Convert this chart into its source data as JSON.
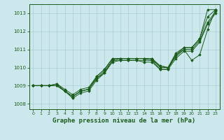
{
  "background_color": "#cde8ec",
  "grid_color": "#aacdd4",
  "line_color": "#1a5c1a",
  "title": "Graphe pression niveau de la mer (hPa)",
  "title_fontsize": 6.5,
  "xlim": [
    -0.5,
    23.5
  ],
  "ylim": [
    1007.7,
    1013.5
  ],
  "yticks": [
    1008,
    1009,
    1010,
    1011,
    1012,
    1013
  ],
  "xticks": [
    0,
    1,
    2,
    3,
    4,
    5,
    6,
    7,
    8,
    9,
    10,
    11,
    12,
    13,
    14,
    15,
    16,
    17,
    18,
    19,
    20,
    21,
    22,
    23
  ],
  "series": [
    {
      "x": [
        0,
        1,
        2,
        3,
        4,
        5,
        6,
        7,
        8,
        9,
        10,
        11,
        12,
        13,
        14,
        15,
        16,
        17,
        18,
        19,
        20,
        21,
        22,
        23
      ],
      "y": [
        1009.0,
        1009.0,
        1009.0,
        1009.1,
        1008.7,
        1008.4,
        1008.7,
        1008.8,
        1009.4,
        1009.8,
        1010.4,
        1010.5,
        1010.5,
        1010.5,
        1010.5,
        1010.4,
        1010.1,
        1010.0,
        1010.6,
        1011.0,
        1011.0,
        1011.5,
        1012.5,
        1013.1
      ]
    },
    {
      "x": [
        0,
        1,
        2,
        3,
        4,
        5,
        6,
        7,
        8,
        9,
        10,
        11,
        12,
        13,
        14,
        15,
        16,
        17,
        18,
        19,
        20,
        21,
        22,
        23
      ],
      "y": [
        1009.0,
        1009.0,
        1009.0,
        1009.0,
        1008.7,
        1008.4,
        1008.7,
        1008.8,
        1009.5,
        1009.9,
        1010.5,
        1010.5,
        1010.5,
        1010.5,
        1010.5,
        1010.5,
        1010.0,
        1010.0,
        1010.7,
        1011.1,
        1011.1,
        1011.6,
        1013.2,
        1013.2
      ]
    },
    {
      "x": [
        0,
        1,
        2,
        3,
        4,
        5,
        6,
        7,
        8,
        9,
        10,
        11,
        12,
        13,
        14,
        15,
        16,
        17,
        18,
        19,
        20,
        21,
        22,
        23
      ],
      "y": [
        1009.0,
        1009.0,
        1009.0,
        1009.0,
        1008.7,
        1008.3,
        1008.6,
        1008.7,
        1009.3,
        1009.7,
        1010.3,
        1010.4,
        1010.4,
        1010.4,
        1010.3,
        1010.3,
        1009.9,
        1009.9,
        1010.5,
        1010.9,
        1010.9,
        1011.4,
        1012.4,
        1013.0
      ]
    },
    {
      "x": [
        0,
        1,
        2,
        3,
        4,
        5,
        6,
        7,
        8,
        9,
        10,
        11,
        12,
        13,
        14,
        15,
        16,
        17,
        18,
        19,
        20,
        21,
        22,
        23
      ],
      "y": [
        1009.0,
        1009.0,
        1009.0,
        1009.0,
        1008.7,
        1008.4,
        1008.7,
        1008.8,
        1009.4,
        1009.7,
        1010.4,
        1010.4,
        1010.4,
        1010.4,
        1010.4,
        1010.4,
        1009.9,
        1009.9,
        1010.7,
        1011.0,
        1010.4,
        1010.7,
        1012.1,
        1013.2
      ]
    },
    {
      "x": [
        0,
        1,
        2,
        3,
        4,
        5,
        6,
        7,
        8,
        9,
        10,
        11,
        12,
        13,
        14,
        15,
        16,
        17,
        18,
        19,
        20,
        21,
        22,
        23
      ],
      "y": [
        1009.0,
        1009.0,
        1009.0,
        1009.1,
        1008.8,
        1008.5,
        1008.8,
        1008.9,
        1009.5,
        1009.9,
        1010.5,
        1010.5,
        1010.5,
        1010.5,
        1010.5,
        1010.5,
        1010.1,
        1010.0,
        1010.8,
        1011.1,
        1011.1,
        1011.6,
        1012.8,
        1013.2
      ]
    }
  ]
}
